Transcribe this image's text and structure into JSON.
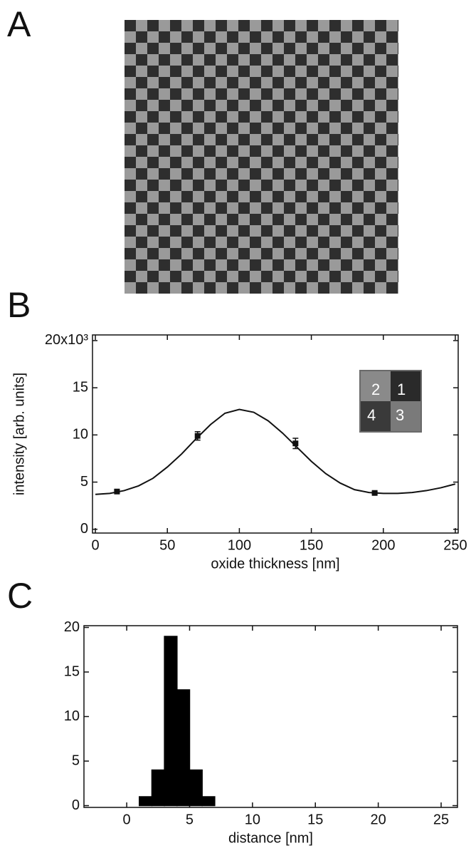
{
  "panel_labels": [
    "A",
    "B",
    "C"
  ],
  "chart_data": [
    {
      "type": "scatter",
      "xlabel": "oxide thickness [nm]",
      "ylabel": "intensity [arb. units]",
      "inset_labels": [
        "2",
        "1",
        "4",
        "3"
      ],
      "xlim": [
        -2,
        252
      ],
      "ylim": [
        -0.4,
        20.6
      ],
      "xticks": [
        0,
        50,
        100,
        150,
        200,
        250
      ],
      "yticks": [
        0,
        5,
        10,
        15,
        {
          "value": 20,
          "label": "20x10³"
        }
      ],
      "series": [
        {
          "type": "scatter",
          "color": "#111111",
          "x": [
            15,
            71,
            139,
            194
          ],
          "values": [
            4.0,
            9.9,
            9.1,
            3.85
          ],
          "errors": [
            0.15,
            0.45,
            0.55,
            0.12
          ]
        },
        {
          "type": "line",
          "color": "#111111",
          "x": [
            0,
            10,
            20,
            30,
            40,
            50,
            60,
            70,
            80,
            90,
            100,
            110,
            120,
            130,
            140,
            150,
            160,
            170,
            180,
            190,
            200,
            210,
            220,
            230,
            240,
            250
          ],
          "values": [
            3.7,
            3.8,
            4.1,
            4.6,
            5.4,
            6.6,
            8.0,
            9.6,
            11.1,
            12.3,
            12.7,
            12.4,
            11.5,
            10.2,
            8.7,
            7.2,
            5.9,
            4.9,
            4.2,
            3.9,
            3.8,
            3.8,
            3.9,
            4.1,
            4.4,
            4.8
          ]
        }
      ]
    },
    {
      "type": "histogram",
      "xlabel": "distance [nm]",
      "color": "#000000",
      "xlim": [
        -3.4,
        26.3
      ],
      "ylim": [
        -0.2,
        20.2
      ],
      "xticks": [
        0,
        5,
        10,
        15,
        20,
        25
      ],
      "yticks": [
        0,
        5,
        10,
        15,
        20
      ],
      "bins": [
        -3,
        -2,
        -1,
        0,
        1,
        2,
        3,
        4,
        5,
        6,
        7,
        8,
        9,
        10,
        11,
        12,
        13,
        14,
        15,
        16,
        17,
        18,
        19,
        20,
        21,
        22
      ],
      "values": [
        0,
        0,
        0,
        0,
        1,
        4,
        19,
        13,
        4,
        1,
        0,
        0,
        0,
        0,
        0,
        0,
        0,
        0,
        0,
        0,
        0,
        0,
        0,
        0,
        0
      ]
    }
  ]
}
